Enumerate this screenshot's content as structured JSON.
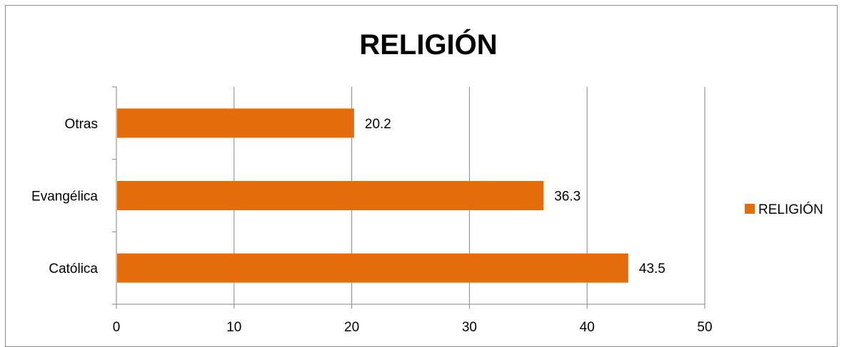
{
  "chart_data": {
    "type": "bar",
    "orientation": "horizontal",
    "title": "RELIGIÓN",
    "categories": [
      "Otras",
      "Evangélica",
      "Católica"
    ],
    "series": [
      {
        "name": "RELIGIÓN",
        "values": [
          20.2,
          36.3,
          43.5
        ],
        "color": "#E46C0A"
      }
    ],
    "data_labels": [
      "20.2",
      "36.3",
      "43.5"
    ],
    "x_ticks": [
      "0",
      "10",
      "20",
      "30",
      "40",
      "50"
    ],
    "xlim": [
      0,
      50
    ],
    "grid": true,
    "legend": "right"
  },
  "colors": {
    "bar": "#E46C0A",
    "grid": "#868686",
    "axis": "#868686",
    "frame": "#8c8c8c"
  }
}
